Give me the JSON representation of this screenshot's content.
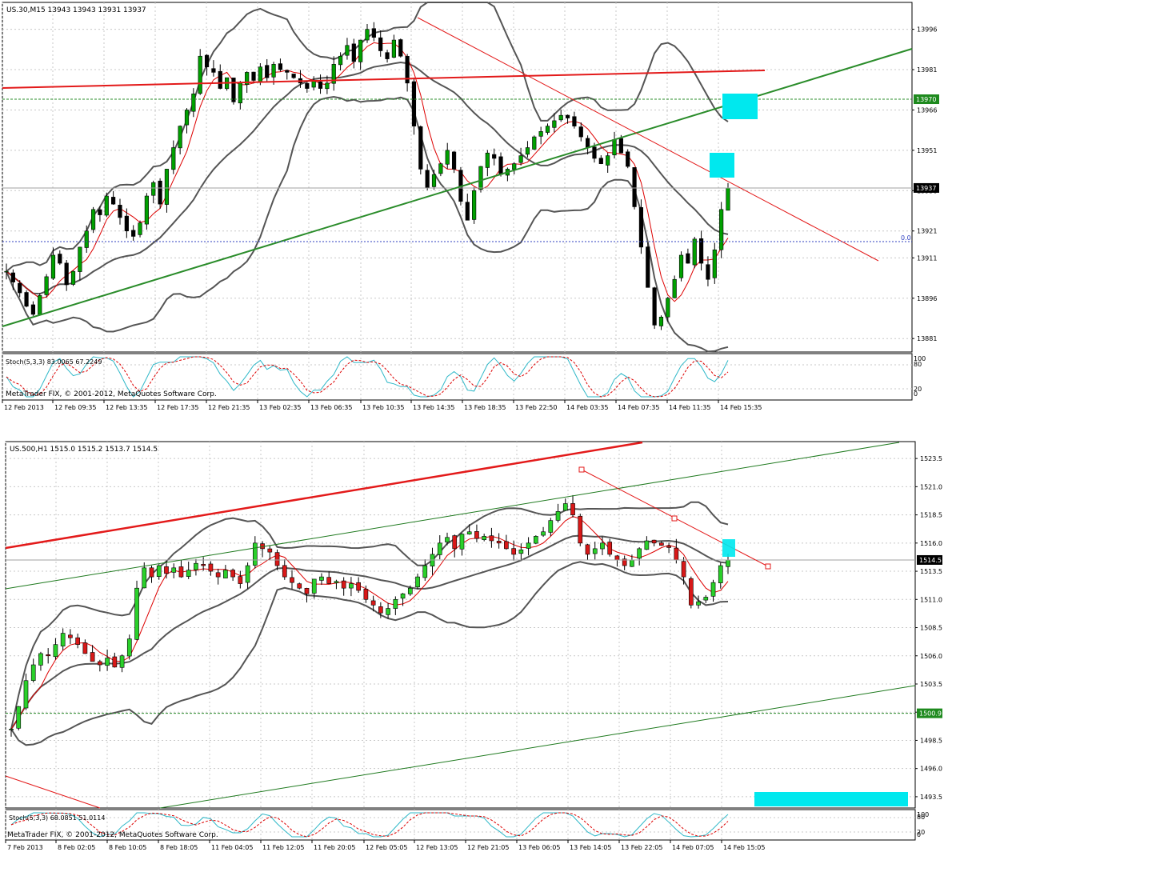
{
  "chart_data": [
    {
      "type": "candlestick",
      "title": "US.30,M15  13943 13943 13931 13937",
      "ylim": [
        13876,
        14006
      ],
      "y_ticks": [
        "13996",
        "13981",
        "13966",
        "13951",
        "13936",
        "13921",
        "13911",
        "13896",
        "13881"
      ],
      "x_ticks": [
        "12 Feb 2013",
        "12 Feb 09:35",
        "12 Feb 13:35",
        "12 Feb 17:35",
        "12 Feb 21:35",
        "13 Feb 02:35",
        "13 Feb 06:35",
        "13 Feb 10:35",
        "13 Feb 14:35",
        "13 Feb 18:35",
        "13 Feb 22:50",
        "14 Feb 03:35",
        "14 Feb 07:35",
        "14 Feb 11:35",
        "14 Feb 15:35"
      ],
      "current_price": 13937,
      "current_price_label": "13937",
      "marked_level": 13970,
      "marked_level_label": "13970",
      "fib_label": "0.0",
      "bands": true,
      "indicator": {
        "label": "Stoch(5,3,3) 83.0065 67.2249",
        "levels": [
          "100",
          "80",
          "20",
          "0"
        ],
        "copyright": "MetaTrader FIX, © 2001-2012, MetaQuotes Software Corp."
      },
      "close": [
        13906,
        13902,
        13898,
        13893,
        13890,
        13897,
        13904,
        13912,
        13909,
        13901,
        13906,
        13915,
        13921,
        13929,
        13927,
        13934,
        13931,
        13926,
        13921,
        13919,
        13924,
        13934,
        13939,
        13931,
        13944,
        13952,
        13960,
        13966,
        13972,
        13986,
        13982,
        13980,
        13974,
        13978,
        13969,
        13976,
        13980,
        13977,
        13982,
        13978,
        13983,
        13981,
        13980,
        13978,
        13976,
        13974,
        13977,
        13974,
        13976,
        13983,
        13986,
        13990,
        13984,
        13992,
        13996,
        13993,
        13988,
        13985,
        13992,
        13986,
        13976,
        13960,
        13944,
        13937,
        13942,
        13946,
        13951,
        13944,
        13932,
        13925,
        13936,
        13945,
        13950,
        13948,
        13942,
        13944,
        13946,
        13949,
        13952,
        13956,
        13958,
        13960,
        13962,
        13964,
        13963,
        13960,
        13956,
        13952,
        13948,
        13946,
        13949,
        13955,
        13950,
        13945,
        13930,
        13915,
        13900,
        13886,
        13889,
        13896,
        13903,
        13912,
        13909,
        13918,
        13909,
        13903,
        13914,
        13929,
        13937
      ],
      "colors": {
        "bull": "#00a000",
        "bear": "#000000",
        "ma": "#dd0000",
        "bands": "#555555",
        "trend_up": "#2a8c2a",
        "resist": "#e31a1a",
        "stoch_k": "#2fb8c8",
        "stoch_d": "#dd0000",
        "highlight": "#00e8ee"
      }
    },
    {
      "type": "candlestick",
      "title": "US.500,H1  1515.0 1515.2 1513.7 1514.5",
      "ylim": [
        1492.5,
        1525
      ],
      "y_ticks": [
        "1523.5",
        "1521.0",
        "1518.5",
        "1516.0",
        "1513.5",
        "1511.0",
        "1508.5",
        "1506.0",
        "1503.5",
        "1501.0",
        "1498.5",
        "1496.0",
        "1493.5"
      ],
      "x_ticks": [
        "7 Feb 2013",
        "8 Feb 02:05",
        "8 Feb 10:05",
        "8 Feb 18:05",
        "11 Feb 04:05",
        "11 Feb 12:05",
        "11 Feb 20:05",
        "12 Feb 05:05",
        "12 Feb 13:05",
        "12 Feb 21:05",
        "13 Feb 06:05",
        "13 Feb 14:05",
        "13 Feb 22:05",
        "14 Feb 07:05",
        "14 Feb 15:05"
      ],
      "current_price": 1514.5,
      "current_price_label": "1514.5",
      "marked_level": 1500.9,
      "marked_level_label": "1500.9",
      "indicator": {
        "label": "Stoch(5,3,3) 68.0851 51.0114",
        "levels": [
          "100",
          "80",
          "20",
          "0"
        ],
        "copyright": "MetaTrader FIX, © 2001-2012, MetaQuotes Software Corp."
      },
      "close": [
        1499.5,
        1501.5,
        1503.8,
        1505.2,
        1506.2,
        1506.0,
        1507.0,
        1508.0,
        1507.6,
        1507.0,
        1506.2,
        1505.5,
        1505.2,
        1505.8,
        1505.0,
        1506.0,
        1507.5,
        1512.0,
        1513.8,
        1513.0,
        1514.0,
        1513.3,
        1513.8,
        1513.0,
        1513.6,
        1514.2,
        1514.0,
        1513.5,
        1513.0,
        1513.6,
        1513.0,
        1512.4,
        1514.0,
        1516.0,
        1515.5,
        1515.2,
        1514.0,
        1513.0,
        1512.5,
        1512.0,
        1511.5,
        1512.8,
        1513.0,
        1512.4,
        1512.6,
        1512.0,
        1512.4,
        1511.8,
        1511.0,
        1510.5,
        1509.8,
        1510.2,
        1511.0,
        1511.5,
        1512.0,
        1513.0,
        1514.0,
        1515.0,
        1516.0,
        1516.5,
        1515.5,
        1516.8,
        1517.0,
        1516.4,
        1516.6,
        1516.2,
        1516.0,
        1515.5,
        1515.0,
        1515.4,
        1516.0,
        1516.6,
        1517.0,
        1518.0,
        1518.8,
        1519.5,
        1518.5,
        1516.0,
        1515.0,
        1515.5,
        1516.0,
        1515.0,
        1514.5,
        1514.0,
        1514.5,
        1515.5,
        1516.2,
        1516.0,
        1515.8,
        1515.6,
        1514.5,
        1513.0,
        1510.5,
        1510.8,
        1511.2,
        1512.5,
        1514.0,
        1514.5
      ],
      "colors": {
        "bull": "#2ad02a",
        "bear": "#d81818",
        "ma": "#dd0000",
        "bands": "#555555",
        "channel": "#1f7a1f",
        "resist": "#e31a1a",
        "highlight": "#00e8ee"
      }
    }
  ]
}
